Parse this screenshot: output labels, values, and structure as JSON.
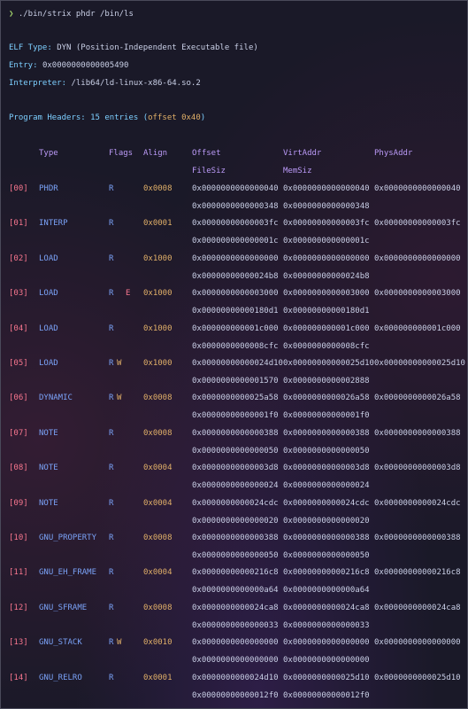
{
  "command": {
    "prompt": "❯",
    "text": "./bin/strix phdr /bin/ls"
  },
  "elf": {
    "type_label": "ELF Type:",
    "type_value": "DYN (Position-Independent Executable file)",
    "entry_label": "Entry:",
    "entry_value": "0x0000000000005490",
    "interp_label": "Interpreter:",
    "interp_value": "/lib64/ld-linux-x86-64.so.2"
  },
  "program_headers": {
    "title": "Program Headers: 15 entries ",
    "offset_note_open": "(",
    "offset_note": "offset 0x40",
    "offset_note_close": ")",
    "columns": {
      "type": "Type",
      "flags": "Flags",
      "align": "Align",
      "offset": "Offset",
      "filesiz": "FileSiz",
      "virtaddr": "VirtAddr",
      "memsiz": "MemSiz",
      "physaddr": "PhysAddr"
    },
    "rows": [
      {
        "idx": "[00]",
        "type": "PHDR",
        "r": "R",
        "w": "",
        "e": "",
        "align": "0x0008",
        "offset": "0x0000000000000040",
        "virtaddr": "0x0000000000000040",
        "physaddr": "0x0000000000000040",
        "filesiz": "0x0000000000000348",
        "memsiz": "0x0000000000000348"
      },
      {
        "idx": "[01]",
        "type": "INTERP",
        "r": "R",
        "w": "",
        "e": "",
        "align": "0x0001",
        "offset": "0x00000000000003fc",
        "virtaddr": "0x00000000000003fc",
        "physaddr": "0x00000000000003fc",
        "filesiz": "0x000000000000001c",
        "memsiz": "0x000000000000001c"
      },
      {
        "idx": "[02]",
        "type": "LOAD",
        "r": "R",
        "w": "",
        "e": "",
        "align": "0x1000",
        "offset": "0x0000000000000000",
        "virtaddr": "0x0000000000000000",
        "physaddr": "0x0000000000000000",
        "filesiz": "0x00000000000024b8",
        "memsiz": "0x00000000000024b8"
      },
      {
        "idx": "[03]",
        "type": "LOAD",
        "r": "R",
        "w": "",
        "e": "E",
        "align": "0x1000",
        "offset": "0x0000000000003000",
        "virtaddr": "0x0000000000003000",
        "physaddr": "0x0000000000003000",
        "filesiz": "0x00000000000180d1",
        "memsiz": "0x00000000000180d1"
      },
      {
        "idx": "[04]",
        "type": "LOAD",
        "r": "R",
        "w": "",
        "e": "",
        "align": "0x1000",
        "offset": "0x000000000001c000",
        "virtaddr": "0x000000000001c000",
        "physaddr": "0x000000000001c000",
        "filesiz": "0x0000000000008cfc",
        "memsiz": "0x0000000000008cfc"
      },
      {
        "idx": "[05]",
        "type": "LOAD",
        "r": "R",
        "w": "W",
        "e": "",
        "align": "0x1000",
        "offset": "0x00000000000024d10",
        "virtaddr": "0x00000000000025d10",
        "physaddr": "0x00000000000025d10",
        "filesiz": "0x0000000000001570",
        "memsiz": "0x0000000000002888"
      },
      {
        "idx": "[06]",
        "type": "DYNAMIC",
        "r": "R",
        "w": "W",
        "e": "",
        "align": "0x0008",
        "offset": "0x0000000000025a58",
        "virtaddr": "0x0000000000026a58",
        "physaddr": "0x0000000000026a58",
        "filesiz": "0x00000000000001f0",
        "memsiz": "0x00000000000001f0"
      },
      {
        "idx": "[07]",
        "type": "NOTE",
        "r": "R",
        "w": "",
        "e": "",
        "align": "0x0008",
        "offset": "0x0000000000000388",
        "virtaddr": "0x0000000000000388",
        "physaddr": "0x0000000000000388",
        "filesiz": "0x0000000000000050",
        "memsiz": "0x0000000000000050"
      },
      {
        "idx": "[08]",
        "type": "NOTE",
        "r": "R",
        "w": "",
        "e": "",
        "align": "0x0004",
        "offset": "0x00000000000003d8",
        "virtaddr": "0x00000000000003d8",
        "physaddr": "0x00000000000003d8",
        "filesiz": "0x0000000000000024",
        "memsiz": "0x0000000000000024"
      },
      {
        "idx": "[09]",
        "type": "NOTE",
        "r": "R",
        "w": "",
        "e": "",
        "align": "0x0004",
        "offset": "0x0000000000024cdc",
        "virtaddr": "0x0000000000024cdc",
        "physaddr": "0x0000000000024cdc",
        "filesiz": "0x0000000000000020",
        "memsiz": "0x0000000000000020"
      },
      {
        "idx": "[10]",
        "type": "GNU_PROPERTY",
        "r": "R",
        "w": "",
        "e": "",
        "align": "0x0008",
        "offset": "0x0000000000000388",
        "virtaddr": "0x0000000000000388",
        "physaddr": "0x0000000000000388",
        "filesiz": "0x0000000000000050",
        "memsiz": "0x0000000000000050"
      },
      {
        "idx": "[11]",
        "type": "GNU_EH_FRAME",
        "r": "R",
        "w": "",
        "e": "",
        "align": "0x0004",
        "offset": "0x00000000000216c8",
        "virtaddr": "0x00000000000216c8",
        "physaddr": "0x00000000000216c8",
        "filesiz": "0x0000000000000a64",
        "memsiz": "0x0000000000000a64"
      },
      {
        "idx": "[12]",
        "type": "GNU_SFRAME",
        "r": "R",
        "w": "",
        "e": "",
        "align": "0x0008",
        "offset": "0x0000000000024ca8",
        "virtaddr": "0x0000000000024ca8",
        "physaddr": "0x0000000000024ca8",
        "filesiz": "0x0000000000000033",
        "memsiz": "0x0000000000000033"
      },
      {
        "idx": "[13]",
        "type": "GNU_STACK",
        "r": "R",
        "w": "W",
        "e": "",
        "align": "0x0010",
        "offset": "0x0000000000000000",
        "virtaddr": "0x0000000000000000",
        "physaddr": "0x0000000000000000",
        "filesiz": "0x0000000000000000",
        "memsiz": "0x0000000000000000"
      },
      {
        "idx": "[14]",
        "type": "GNU_RELRO",
        "r": "R",
        "w": "",
        "e": "",
        "align": "0x0001",
        "offset": "0x0000000000024d10",
        "virtaddr": "0x0000000000025d10",
        "physaddr": "0x0000000000025d10",
        "filesiz": "0x00000000000012f0",
        "memsiz": "0x00000000000012f0"
      }
    ]
  },
  "colors": {
    "background": "#1a1928",
    "prompt": "#9ece6a",
    "label": "#7dcfff",
    "index": "#f7768e",
    "type": "#7aa2f7",
    "align": "#e0af68",
    "header": "#bb9af7"
  }
}
